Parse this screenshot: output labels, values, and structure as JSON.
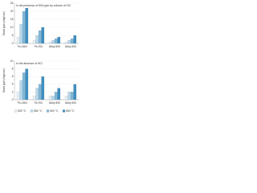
{
  "chart_data": [
    {
      "type": "bar",
      "y_label": "Mass gain (mg/cm²)",
      "annotation": "In the presence of 600 ppm by volume of HCl",
      "categories": [
        "Fe-18Cr",
        "Fe-9Cr",
        "Alloy 800",
        "Alloy 600"
      ],
      "series": [
        {
          "color": "#e3eef5",
          "values": [
            4,
            2,
            1,
            1
          ]
        },
        {
          "color": "#b7d7ea",
          "values": [
            12,
            5,
            2,
            2
          ]
        },
        {
          "color": "#7fb7d8",
          "values": [
            20,
            8,
            3,
            3
          ]
        },
        {
          "color": "#3f8fc2",
          "values": [
            22,
            10,
            4,
            5
          ]
        }
      ],
      "ylim": [
        0,
        25
      ],
      "yticks": [
        0,
        5,
        10,
        15,
        20,
        25
      ],
      "grid": true
    },
    {
      "type": "bar",
      "y_label": "Mass gain (mg/cm²)",
      "annotation": "In the absence of HCl",
      "categories": [
        "Fe-18Cr",
        "Fe-9Cr",
        "Alloy 800",
        "Alloy 600"
      ],
      "series": [
        {
          "name": "500 °C",
          "color": "#e3eef5",
          "values": [
            2,
            1,
            1,
            1
          ]
        },
        {
          "name": "550 °C",
          "color": "#b7d7ea",
          "values": [
            5,
            3,
            1,
            2
          ]
        },
        {
          "name": "600 °C",
          "color": "#7fb7d8",
          "values": [
            7,
            4,
            2,
            2
          ]
        },
        {
          "name": "650 °C",
          "color": "#3f8fc2",
          "values": [
            8,
            6,
            3,
            4
          ]
        }
      ],
      "ylim": [
        0,
        10
      ],
      "yticks": [
        0,
        2,
        4,
        6,
        8,
        10
      ],
      "grid": true,
      "legend": "bottom"
    }
  ]
}
